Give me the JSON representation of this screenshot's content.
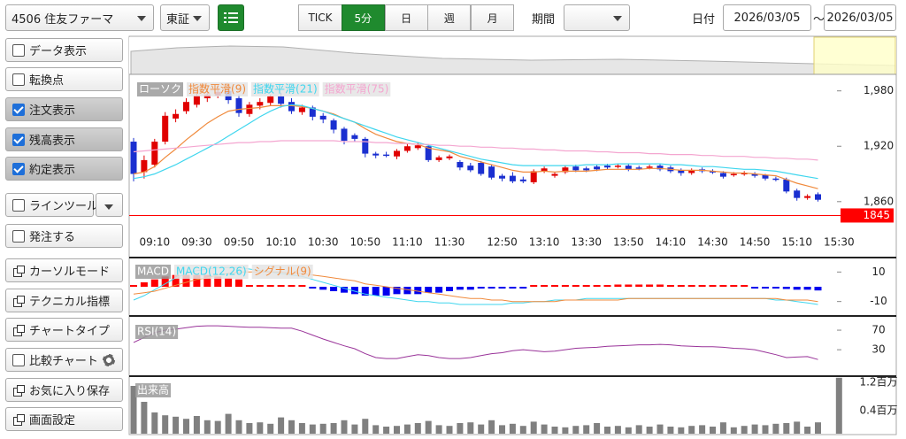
{
  "toolbar": {
    "symbol": "4506 住友ファーマ",
    "market": "東証",
    "tabs": [
      "TICK",
      "5分",
      "日",
      "週",
      "月"
    ],
    "active_tab": "5分",
    "period_label": "期間",
    "date_label": "日付",
    "date_from": "2026/03/05",
    "separator": "～",
    "date_to": "2026/03/05"
  },
  "sidebar": [
    {
      "label": "データ表示",
      "kind": "check",
      "checked": false
    },
    {
      "label": "転換点",
      "kind": "check",
      "checked": false
    },
    {
      "label": "注文表示",
      "kind": "check",
      "checked": true
    },
    {
      "label": "残高表示",
      "kind": "check",
      "checked": true
    },
    {
      "label": "約定表示",
      "kind": "check",
      "checked": true
    },
    {
      "label": "ラインツール",
      "kind": "check",
      "checked": false,
      "menu": true
    },
    {
      "label": "発注する",
      "kind": "check",
      "checked": false
    },
    {
      "label": "カーソルモード",
      "kind": "icon"
    },
    {
      "label": "テクニカル指標",
      "kind": "icon"
    },
    {
      "label": "チャートタイプ",
      "kind": "icon"
    },
    {
      "label": "比較チャート",
      "kind": "check",
      "checked": false,
      "gear": true
    },
    {
      "label": "お気に入り保存",
      "kind": "icon"
    },
    {
      "label": "画面設定",
      "kind": "icon"
    }
  ],
  "chart_data": [
    {
      "type": "candlestick",
      "candle_name": "ローソク",
      "up_color": "#e00000",
      "down_color": "#1a2fd0",
      "categories": [
        null,
        null,
        "09:10",
        null,
        null,
        null,
        "09:30",
        null,
        null,
        null,
        "09:50",
        null,
        null,
        null,
        "10:10",
        null,
        null,
        null,
        "10:30",
        null,
        null,
        null,
        "10:50",
        null,
        null,
        null,
        "11:10",
        null,
        null,
        null,
        "11:30",
        null,
        null,
        null,
        null,
        "12:50",
        null,
        null,
        null,
        "13:10",
        null,
        null,
        null,
        "13:30",
        null,
        null,
        null,
        "13:50",
        null,
        null,
        null,
        "14:10",
        null,
        null,
        null,
        "14:30",
        null,
        null,
        null,
        "14:50",
        null,
        null,
        null,
        "15:10",
        null,
        null,
        null,
        "15:30"
      ],
      "open": [
        1925,
        1892,
        1900,
        1925,
        1950,
        1958,
        1965,
        1972,
        1975,
        1980,
        1972,
        1955,
        1964,
        1967,
        1974,
        1968,
        1957,
        1962,
        1953,
        1948,
        1939,
        1932,
        1928,
        1912,
        1911,
        1909,
        1915,
        1918,
        1920,
        1905,
        1907,
        1903,
        1899,
        1902,
        1898,
        1888,
        1888,
        1884,
        1881,
        1893,
        1888,
        1892,
        1898,
        1896,
        1898,
        1899,
        1898,
        1899,
        1897,
        1897,
        1899,
        1897,
        1894,
        1891,
        1895,
        1893,
        1891,
        1889,
        1890,
        1890,
        1889,
        1885,
        1884,
        1872,
        1864,
        1868,
        null,
        null
      ],
      "high": [
        1929,
        1910,
        1928,
        1957,
        1960,
        1972,
        1980,
        1982,
        1986,
        1985,
        1976,
        1968,
        1972,
        1976,
        1978,
        1972,
        1965,
        1964,
        1956,
        1950,
        1941,
        1934,
        1930,
        1914,
        1914,
        1917,
        1923,
        1924,
        1922,
        1910,
        1911,
        1905,
        1902,
        1904,
        1900,
        1890,
        1892,
        1887,
        1895,
        1898,
        1892,
        1899,
        1900,
        1898,
        1900,
        1901,
        1901,
        1901,
        1899,
        1900,
        1901,
        1899,
        1896,
        1896,
        1897,
        1895,
        1893,
        1892,
        1893,
        1892,
        1890,
        1887,
        1886,
        1874,
        1868,
        1870,
        null,
        null
      ],
      "low": [
        1882,
        1885,
        1897,
        1922,
        1946,
        1955,
        1962,
        1968,
        1972,
        1966,
        1952,
        1952,
        1960,
        1964,
        1962,
        1955,
        1954,
        1948,
        1945,
        1934,
        1922,
        1925,
        1908,
        1907,
        1908,
        1906,
        1913,
        1916,
        1903,
        1903,
        1905,
        1894,
        1892,
        1888,
        1884,
        1882,
        1880,
        1880,
        1879,
        1891,
        1886,
        1890,
        1892,
        1892,
        1893,
        1895,
        1896,
        1893,
        1894,
        1895,
        1893,
        1891,
        1888,
        1889,
        1891,
        1890,
        1885,
        1887,
        1888,
        1886,
        1883,
        1882,
        1869,
        1861,
        1862,
        1860,
        null,
        null
      ],
      "close": [
        1890,
        1905,
        1925,
        1953,
        1955,
        1968,
        1975,
        1976,
        1979,
        1970,
        1956,
        1965,
        1968,
        1974,
        1966,
        1958,
        1962,
        1952,
        1949,
        1938,
        1926,
        1928,
        1912,
        1910,
        1910,
        1915,
        1920,
        1921,
        1905,
        1908,
        1909,
        1897,
        1894,
        1890,
        1886,
        1885,
        1882,
        1882,
        1893,
        1896,
        1890,
        1897,
        1894,
        1894,
        1895,
        1897,
        1899,
        1895,
        1896,
        1898,
        1895,
        1893,
        1891,
        1894,
        1893,
        1892,
        1887,
        1890,
        1891,
        1888,
        1885,
        1884,
        1871,
        1864,
        1866,
        1862,
        null,
        null
      ],
      "series": [
        {
          "name": "指数平滑(9)",
          "color": "#f08a3c",
          "values": [
            1890,
            1892,
            1898,
            1908,
            1917,
            1927,
            1936,
            1945,
            1952,
            1958,
            1960,
            1961,
            1962,
            1964,
            1964,
            1964,
            1963,
            1961,
            1958,
            1955,
            1950,
            1946,
            1939,
            1933,
            1929,
            1925,
            1923,
            1922,
            1918,
            1916,
            1914,
            1909,
            1906,
            1903,
            1900,
            1897,
            1894,
            1892,
            1892,
            1893,
            1892,
            1893,
            1893,
            1893,
            1894,
            1895,
            1895,
            1895,
            1895,
            1896,
            1896,
            1895,
            1894,
            1894,
            1894,
            1893,
            1892,
            1891,
            1891,
            1890,
            1889,
            1888,
            1884,
            1880,
            1877,
            1874,
            null,
            null
          ]
        },
        {
          "name": "指数平滑(21)",
          "color": "#3fd6ee",
          "values": [
            1885,
            1887,
            1890,
            1895,
            1900,
            1906,
            1912,
            1918,
            1924,
            1931,
            1938,
            1945,
            1952,
            1958,
            1963,
            1965,
            1964,
            1961,
            1958,
            1954,
            1950,
            1946,
            1942,
            1938,
            1934,
            1930,
            1927,
            1924,
            1921,
            1918,
            1915,
            1912,
            1909,
            1906,
            1904,
            1902,
            1900,
            1899,
            1899,
            1899,
            1899,
            1899,
            1899,
            1900,
            1900,
            1900,
            1901,
            1901,
            1901,
            1901,
            1901,
            1900,
            1900,
            1899,
            1898,
            1898,
            1897,
            1896,
            1895,
            1895,
            1894,
            1893,
            1891,
            1889,
            1887,
            1885,
            null,
            null
          ]
        },
        {
          "name": "指数平滑(75)",
          "color": "#f4a6d0",
          "values": [
            1914,
            1915,
            1916,
            1917,
            1918,
            1919,
            1920,
            1921,
            1922,
            1923,
            1924,
            1924,
            1925,
            1925,
            1926,
            1926,
            1926,
            1926,
            1926,
            1926,
            1925,
            1925,
            1925,
            1924,
            1924,
            1923,
            1923,
            1922,
            1922,
            1921,
            1921,
            1920,
            1920,
            1919,
            1919,
            1918,
            1918,
            1917,
            1917,
            1916,
            1916,
            1915,
            1915,
            1915,
            1914,
            1914,
            1913,
            1913,
            1913,
            1912,
            1912,
            1911,
            1911,
            1911,
            1910,
            1910,
            1909,
            1909,
            1909,
            1908,
            1908,
            1907,
            1907,
            1906,
            1906,
            1905,
            null,
            null
          ]
        }
      ],
      "ylim": [
        1832,
        1996
      ],
      "yticks": [
        {
          "value": 1980,
          "label": "1,980"
        },
        {
          "value": 1920,
          "label": "1,920"
        },
        {
          "value": 1860,
          "label": "1,860"
        }
      ],
      "last_price": 1845,
      "last_price_color": "#ff0000"
    },
    {
      "type": "macd",
      "title": "MACD",
      "up_color": "#ff0000",
      "down_color": "#0000ee",
      "series": [
        {
          "name": "MACD(12,26)",
          "color": "#3fd6ee",
          "values": [
            -9,
            -6,
            -2,
            2,
            6,
            9,
            11,
            12,
            13,
            13,
            13,
            12,
            11,
            10,
            9,
            8,
            7,
            5,
            3,
            1,
            -1,
            -3,
            -5,
            -6,
            -7,
            -8,
            -9,
            -10,
            -10,
            -11,
            -11,
            -12,
            -12,
            -12,
            -12,
            -12,
            -11,
            -11,
            -10,
            -10,
            -9,
            -9,
            -9,
            -8,
            -8,
            -8,
            -8,
            -8,
            -8,
            -8,
            -8,
            -8,
            -8,
            -8,
            -8,
            -8,
            -8,
            -8,
            -8,
            -8,
            -8,
            -9,
            -9,
            -10,
            -11,
            -12,
            null,
            null
          ]
        },
        {
          "name": "シグナル(9)",
          "color": "#f08a3c",
          "values": [
            -5,
            -4,
            -3,
            -1,
            1,
            3,
            5,
            6,
            8,
            9,
            10,
            10,
            10,
            10,
            10,
            9,
            9,
            8,
            7,
            6,
            5,
            4,
            2,
            1,
            0,
            -1,
            -2,
            -3,
            -4,
            -5,
            -6,
            -7,
            -8,
            -8,
            -9,
            -9,
            -10,
            -10,
            -10,
            -10,
            -10,
            -9,
            -9,
            -9,
            -9,
            -9,
            -9,
            -8,
            -8,
            -8,
            -8,
            -8,
            -8,
            -8,
            -8,
            -8,
            -8,
            -8,
            -8,
            -8,
            -8,
            -8,
            -9,
            -9,
            -9,
            -10,
            null,
            null
          ]
        }
      ],
      "histogram": [
        1,
        3,
        5,
        7,
        8,
        8,
        8,
        8,
        7,
        6,
        5,
        1,
        0.5,
        0.5,
        0.5,
        0.5,
        0.5,
        -1,
        -2,
        -3,
        -4,
        -5,
        -6,
        -6,
        -6,
        -5,
        -5,
        -5,
        -4,
        -4,
        -3,
        -2,
        -2,
        -1,
        -1,
        -1,
        -0.5,
        -0.5,
        0.5,
        0.5,
        0.5,
        1,
        1,
        1,
        1,
        1,
        1.5,
        1.5,
        1.5,
        1.5,
        1.5,
        1,
        1,
        1,
        1,
        0.5,
        0.5,
        0.5,
        0.5,
        -0.5,
        -1,
        -1,
        -1.5,
        -2,
        -2,
        -2.5,
        null,
        null
      ],
      "ylim": [
        -18,
        18
      ],
      "yticks": [
        10,
        -10
      ]
    },
    {
      "type": "line",
      "series": [
        {
          "name": "RSI(14)",
          "color": "#993399",
          "values": [
            45,
            55,
            65,
            70,
            72,
            75,
            78,
            79,
            79,
            78,
            77,
            76,
            76,
            75,
            74,
            74,
            68,
            60,
            52,
            45,
            38,
            32,
            22,
            14,
            12,
            12,
            16,
            20,
            18,
            14,
            12,
            12,
            14,
            18,
            22,
            24,
            28,
            30,
            28,
            26,
            27,
            30,
            33,
            34,
            35,
            37,
            38,
            39,
            40,
            40,
            41,
            40,
            38,
            37,
            36,
            36,
            35,
            33,
            32,
            30,
            25,
            20,
            14,
            15,
            16,
            10,
            null,
            null
          ]
        }
      ],
      "ylim": [
        -15,
        90
      ],
      "yticks": [
        70,
        30
      ]
    },
    {
      "type": "bar",
      "title": "出来高",
      "color": "#808080",
      "values": [
        1350000,
        900000,
        600000,
        520000,
        480000,
        420000,
        500000,
        380000,
        360000,
        560000,
        380000,
        300000,
        320000,
        280000,
        460000,
        380000,
        300000,
        260000,
        280000,
        300000,
        380000,
        260000,
        420000,
        240000,
        200000,
        220000,
        260000,
        300000,
        360000,
        240000,
        220000,
        300000,
        320000,
        260000,
        380000,
        240000,
        280000,
        220000,
        340000,
        260000,
        200000,
        180000,
        220000,
        240000,
        300000,
        200000,
        220000,
        180000,
        240000,
        200000,
        260000,
        200000,
        180000,
        220000,
        240000,
        200000,
        320000,
        180000,
        220000,
        260000,
        240000,
        280000,
        300000,
        340000,
        200000,
        320000,
        null,
        1580000
      ],
      "ylim": [
        0,
        1600000
      ],
      "yticks": [
        {
          "value": 1200000,
          "label": "1.2百万"
        },
        {
          "value": 400000,
          "label": "0.4百万"
        }
      ]
    }
  ]
}
